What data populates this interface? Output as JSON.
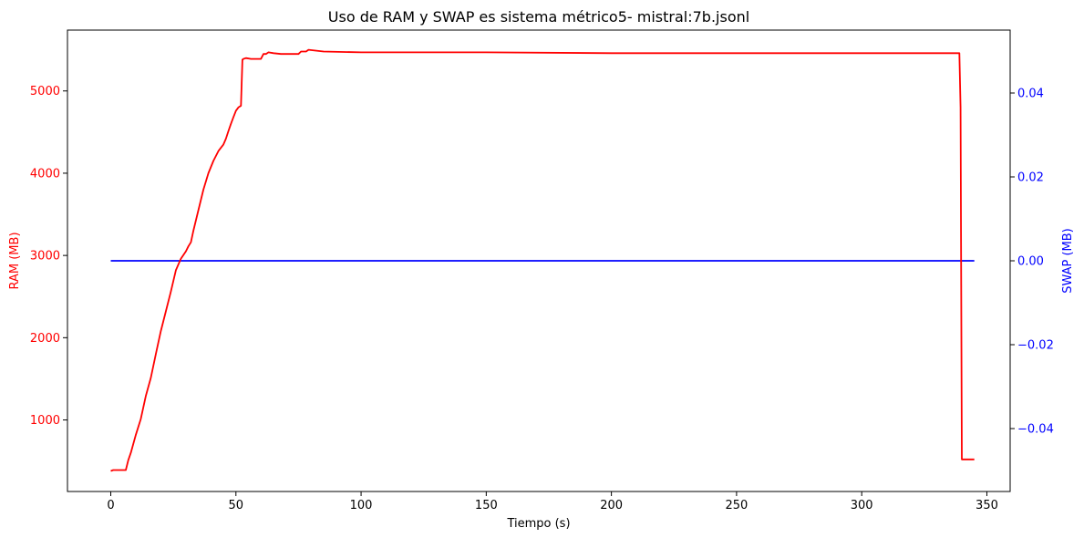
{
  "chart_data": {
    "type": "line",
    "title": "Uso de RAM y  SWAP es sistema métrico5- mistral:7b.jsonl",
    "xlabel": "Tiempo (s)",
    "ylabel_left": "RAM (MB)",
    "ylabel_right": "SWAP (MB)",
    "xlim": [
      -17.3,
      359.3
    ],
    "ylim_left": [
      130,
      5740
    ],
    "ylim_right": [
      -0.055,
      0.055
    ],
    "x_ticks": [
      0,
      50,
      100,
      150,
      200,
      250,
      300,
      350
    ],
    "x_tick_labels": [
      "0",
      "50",
      "100",
      "150",
      "200",
      "250",
      "300",
      "350"
    ],
    "y_left_ticks": [
      1000,
      2000,
      3000,
      4000,
      5000
    ],
    "y_left_tick_labels": [
      "1000",
      "2000",
      "3000",
      "4000",
      "5000"
    ],
    "y_right_ticks": [
      -0.04,
      -0.02,
      0.0,
      0.02,
      0.04
    ],
    "y_right_tick_labels": [
      "−0.04",
      "−0.02",
      "0.00",
      "0.02",
      "0.04"
    ],
    "grid": false,
    "colors": {
      "ram": "#ff0000",
      "swap": "#0000ff",
      "axis": "#000000"
    },
    "series": [
      {
        "axis": "left",
        "color": "#ff0000",
        "x": [
          0,
          1,
          3,
          6,
          7,
          8,
          10,
          12,
          14,
          16,
          18,
          20,
          22,
          24,
          26,
          28,
          30,
          31,
          32,
          33,
          35,
          37,
          39,
          41,
          43,
          45,
          46,
          47,
          48,
          49,
          50,
          51,
          52,
          52.6,
          53,
          54,
          56,
          58,
          60,
          61,
          62,
          63,
          65,
          68,
          70,
          75,
          76,
          78,
          79,
          85,
          100,
          150,
          200,
          250,
          300,
          330,
          339,
          339.5,
          340,
          345
        ],
        "y": [
          380,
          390,
          390,
          390,
          510,
          600,
          820,
          1010,
          1290,
          1510,
          1800,
          2080,
          2320,
          2560,
          2820,
          2960,
          3050,
          3110,
          3160,
          3300,
          3550,
          3800,
          4000,
          4150,
          4270,
          4350,
          4420,
          4510,
          4600,
          4680,
          4760,
          4800,
          4820,
          5380,
          5390,
          5400,
          5390,
          5390,
          5390,
          5450,
          5450,
          5470,
          5460,
          5450,
          5450,
          5450,
          5480,
          5480,
          5500,
          5480,
          5470,
          5470,
          5460,
          5460,
          5460,
          5460,
          5460,
          4800,
          520,
          520
        ]
      },
      {
        "axis": "right",
        "color": "#0000ff",
        "x": [
          0,
          345
        ],
        "y": [
          0.0,
          0.0
        ]
      }
    ]
  }
}
